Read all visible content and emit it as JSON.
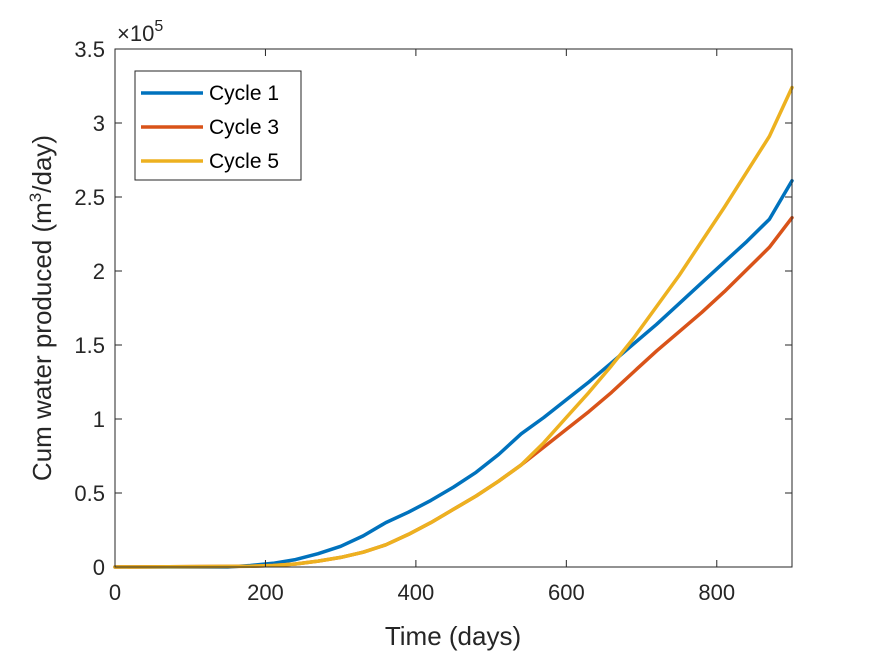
{
  "chart_data": {
    "type": "line",
    "title": "",
    "xlabel": "Time (days)",
    "ylabel_main": "Cum water produced (m",
    "ylabel_sup": "3",
    "ylabel_tail": "/day)",
    "xlim": [
      0,
      900
    ],
    "ylim": [
      0,
      350000
    ],
    "x_ticks": [
      0,
      200,
      400,
      600,
      800
    ],
    "x_tick_labels": [
      "0",
      "200",
      "400",
      "600",
      "800"
    ],
    "y_ticks": [
      0,
      50000,
      100000,
      150000,
      200000,
      250000,
      300000,
      350000
    ],
    "y_tick_labels": [
      "0",
      "0.5",
      "1",
      "1.5",
      "2",
      "2.5",
      "3",
      "3.5"
    ],
    "y_multiplier_base": "×10",
    "y_multiplier_exp": "5",
    "grid": false,
    "legend_position": "top-left",
    "series": [
      {
        "name": "Cycle 1",
        "color": "#0072BD",
        "x": [
          0,
          150,
          180,
          210,
          240,
          270,
          300,
          330,
          360,
          390,
          420,
          450,
          480,
          510,
          540,
          570,
          600,
          630,
          660,
          690,
          720,
          750,
          780,
          810,
          840,
          870,
          900
        ],
        "y": [
          0,
          0,
          1000,
          2500,
          5000,
          9000,
          14000,
          21000,
          30000,
          37000,
          45000,
          54000,
          64000,
          76000,
          90000,
          101000,
          113000,
          125000,
          138000,
          151000,
          164000,
          178000,
          192000,
          206000,
          220000,
          235000,
          261000
        ]
      },
      {
        "name": "Cycle 3",
        "color": "#D95319",
        "x": [
          0,
          180,
          210,
          240,
          270,
          300,
          330,
          360,
          390,
          420,
          450,
          480,
          510,
          540,
          570,
          600,
          630,
          660,
          690,
          720,
          750,
          780,
          810,
          840,
          870,
          900
        ],
        "y": [
          0,
          500,
          1000,
          2000,
          4000,
          6500,
          10000,
          15000,
          22000,
          30000,
          39000,
          48000,
          58000,
          69000,
          81000,
          93000,
          105000,
          118000,
          132000,
          146000,
          159000,
          172000,
          186000,
          201000,
          216000,
          236000
        ]
      },
      {
        "name": "Cycle 5",
        "color": "#EDB120",
        "x": [
          0,
          180,
          210,
          240,
          270,
          300,
          330,
          360,
          390,
          420,
          450,
          480,
          510,
          540,
          570,
          600,
          630,
          660,
          690,
          720,
          750,
          780,
          810,
          840,
          870,
          900
        ],
        "y": [
          0,
          500,
          1000,
          2000,
          4000,
          6500,
          10000,
          15000,
          22000,
          30000,
          39000,
          48000,
          58000,
          69000,
          84000,
          101000,
          118000,
          136000,
          155000,
          176000,
          197000,
          220000,
          243000,
          267000,
          291000,
          324000
        ]
      }
    ]
  }
}
